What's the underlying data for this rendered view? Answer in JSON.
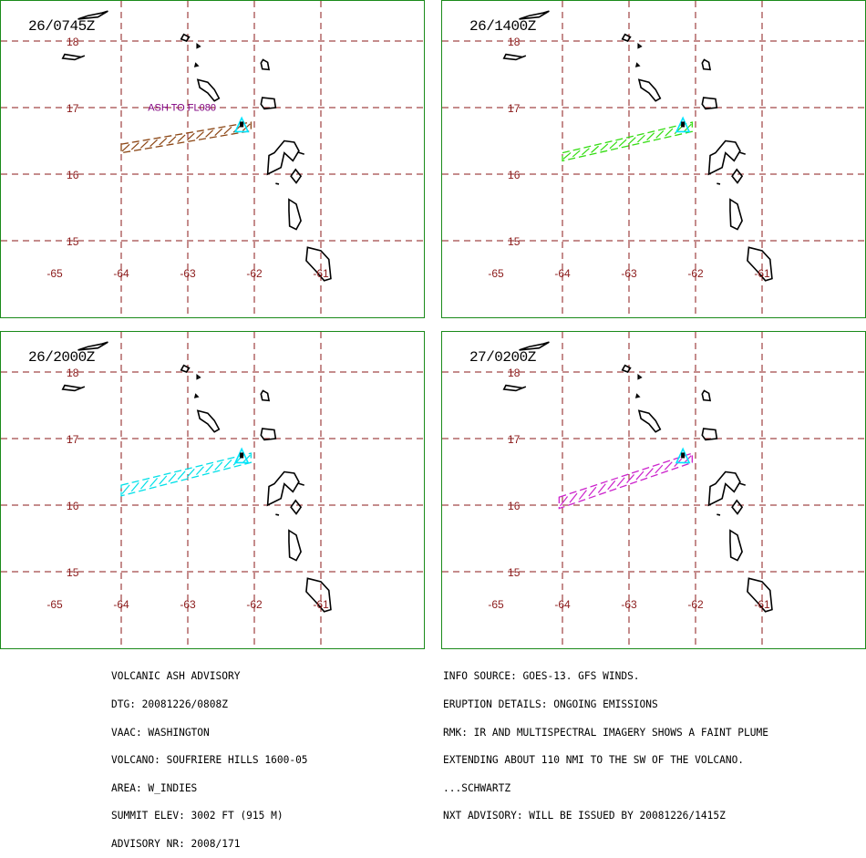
{
  "map_style": {
    "grid_color": "#8b1a1a",
    "land_outline_color": "#000000",
    "volcano_marker_color": "#00e5ff",
    "panel_border_color": "#1a8a1a"
  },
  "axes": {
    "lon_labels": [
      "-65",
      "-64",
      "-63",
      "-62",
      "-61"
    ],
    "lat_labels": [
      "18",
      "17",
      "16",
      "15"
    ]
  },
  "panels": [
    {
      "stamp": "26/0745Z",
      "plume_color": "#8b4513",
      "plume_label": "ASH TO FL080",
      "plume_polygon": [
        [
          -64.0,
          16.45
        ],
        [
          -62.05,
          16.78
        ],
        [
          -62.05,
          16.65
        ],
        [
          -64.0,
          16.32
        ]
      ]
    },
    {
      "stamp": "26/1400Z",
      "plume_color": "#33dd11",
      "plume_label": "",
      "plume_polygon": [
        [
          -64.0,
          16.32
        ],
        [
          -62.05,
          16.78
        ],
        [
          -62.05,
          16.64
        ],
        [
          -64.0,
          16.2
        ]
      ]
    },
    {
      "stamp": "26/2000Z",
      "plume_color": "#00e0e8",
      "plume_label": "",
      "plume_polygon": [
        [
          -64.0,
          16.3
        ],
        [
          -62.05,
          16.78
        ],
        [
          -62.05,
          16.64
        ],
        [
          -64.0,
          16.14
        ]
      ]
    },
    {
      "stamp": "27/0200Z",
      "plume_color": "#cc22cc",
      "plume_label": "",
      "plume_polygon": [
        [
          -64.05,
          16.12
        ],
        [
          -62.05,
          16.78
        ],
        [
          -62.05,
          16.64
        ],
        [
          -64.05,
          15.95
        ]
      ]
    }
  ],
  "advisory_left": [
    "VOLCANIC ASH ADVISORY",
    "DTG: 20081226/0808Z",
    "VAAC: WASHINGTON",
    "VOLCANO: SOUFRIERE HILLS 1600-05",
    "AREA: W_INDIES",
    "SUMMIT ELEV: 3002 FT (915 M)",
    "ADVISORY NR: 2008/171"
  ],
  "advisory_right": [
    "INFO SOURCE: GOES-13. GFS WINDS.",
    "ERUPTION DETAILS: ONGOING EMISSIONS",
    "RMK: IR AND MULTISPECTRAL IMAGERY SHOWS A FAINT PLUME",
    "EXTENDING ABOUT 110 NMI TO THE SW OF THE VOLCANO.",
    "...SCHWARTZ",
    "NXT ADVISORY: WILL BE ISSUED BY 20081226/1415Z"
  ]
}
